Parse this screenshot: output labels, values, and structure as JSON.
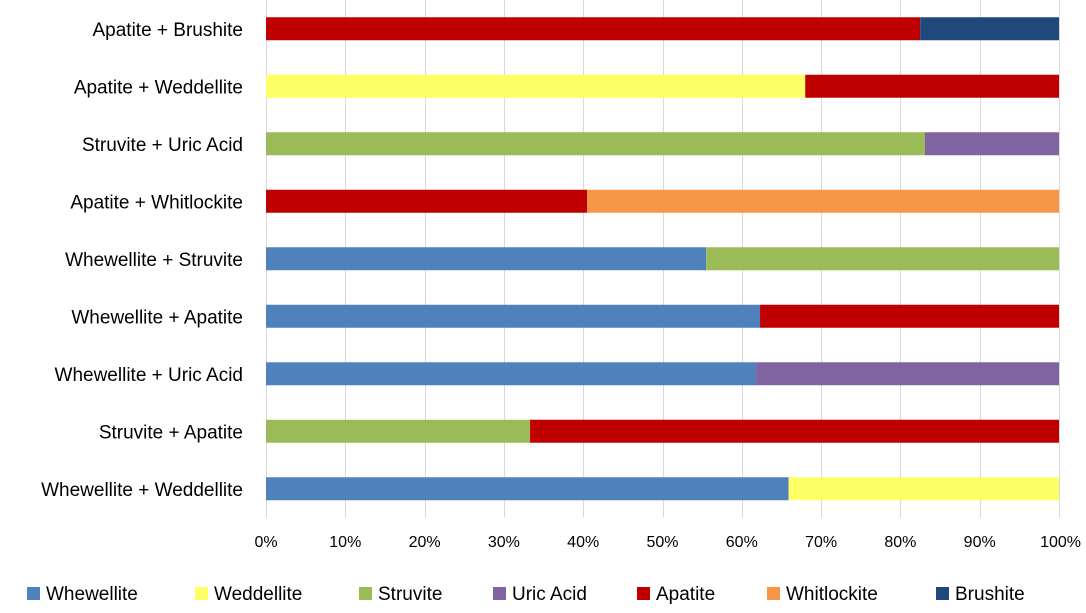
{
  "chart_data": {
    "type": "bar",
    "orientation": "horizontal",
    "stacked": true,
    "percent": true,
    "categories": [
      "Apatite + Brushite",
      "Apatite + Weddellite",
      "Struvite + Uric Acid",
      "Apatite + Whitlockite",
      "Whewellite + Struvite",
      "Whewellite + Apatite",
      "Whewellite + Uric Acid",
      "Struvite + Apatite",
      "Whewellite + Weddellite"
    ],
    "series": [
      {
        "name": "Whewellite",
        "color": "#4f81bd",
        "values": [
          0,
          0,
          0,
          0,
          55.5,
          62.3,
          61.8,
          0,
          65.9
        ]
      },
      {
        "name": "Weddellite",
        "color": "#ffff66",
        "values": [
          0,
          68,
          0,
          0,
          0,
          0,
          0,
          0,
          34.1
        ]
      },
      {
        "name": "Struvite",
        "color": "#9bbb59",
        "values": [
          0,
          0,
          83.1,
          0,
          44.5,
          0,
          0,
          33.3,
          0
        ]
      },
      {
        "name": "Uric Acid",
        "color": "#8064a2",
        "values": [
          0,
          0,
          16.9,
          0,
          0,
          0,
          38.2,
          0,
          0
        ]
      },
      {
        "name": "Apatite",
        "color": "#c00000",
        "values": [
          82.5,
          32,
          0,
          40.5,
          0,
          37.7,
          0,
          66.7,
          0
        ]
      },
      {
        "name": "Whitlockite",
        "color": "#f79646",
        "values": [
          0,
          0,
          0,
          59.5,
          0,
          0,
          0,
          0,
          0
        ]
      },
      {
        "name": "Brushite",
        "color": "#1f497d",
        "values": [
          17.5,
          0,
          0,
          0,
          0,
          0,
          0,
          0,
          0
        ]
      }
    ],
    "xlim": [
      0,
      100
    ],
    "x_ticks": [
      "0%",
      "10%",
      "20%",
      "30%",
      "40%",
      "50%",
      "60%",
      "70%",
      "80%",
      "90%",
      "100%"
    ],
    "title": "",
    "xlabel": "",
    "ylabel": "",
    "grid": true,
    "legend_position": "bottom"
  }
}
